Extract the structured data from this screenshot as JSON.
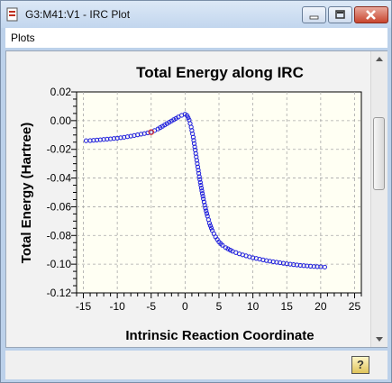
{
  "window": {
    "title": "G3:M41:V1 - IRC Plot"
  },
  "menu": {
    "items": [
      "Plots"
    ]
  },
  "statusbar": {
    "help_glyph": "?"
  },
  "chart_data": {
    "type": "scatter",
    "title": "Total Energy along IRC",
    "xlabel": "Intrinsic Reaction Coordinate",
    "ylabel": "Total Energy (Hartree)",
    "xlim": [
      -16,
      26
    ],
    "ylim": [
      -0.12,
      0.02
    ],
    "x_ticks": [
      -15,
      -10,
      -5,
      0,
      5,
      10,
      15,
      20,
      25
    ],
    "y_ticks": [
      0.02,
      0.0,
      -0.02,
      -0.04,
      -0.06,
      -0.08,
      -0.1,
      -0.12
    ],
    "x_tick_labels": [
      "-15",
      "-10",
      "-5",
      "0",
      "5",
      "10",
      "15",
      "20",
      "25"
    ],
    "y_tick_labels": [
      "0.02",
      "0.00",
      "-0.02",
      "-0.04",
      "-0.06",
      "-0.08",
      "-0.10",
      "-0.12"
    ],
    "grid": true,
    "marker_color": "#1a1adc",
    "highlight_color": "#d23030",
    "highlight_x": -5,
    "series": [
      {
        "x": [
          -14.6,
          -14.0,
          -13.0,
          -12.0,
          -11.0,
          -10.0,
          -9.0,
          -8.0,
          -7.0,
          -6.0,
          -5.0,
          -4.0,
          -3.0,
          -2.0,
          -1.0,
          -0.5,
          0.0,
          0.3,
          0.6,
          0.9,
          1.2,
          1.5,
          1.8,
          2.1,
          2.4,
          2.7,
          3.0,
          3.3,
          3.6,
          4.0,
          4.5,
          5.0,
          5.5,
          6.0,
          7.0,
          8.0,
          9.0,
          10.0,
          11.0,
          12.0,
          13.0,
          14.0,
          15.0,
          16.0,
          17.0,
          18.0,
          19.0,
          20.0,
          20.6
        ],
        "values": [
          -0.014,
          -0.0139,
          -0.0135,
          -0.0131,
          -0.0127,
          -0.0122,
          -0.0116,
          -0.0108,
          -0.0099,
          -0.009,
          -0.008,
          -0.0058,
          -0.003,
          -0.0002,
          0.0025,
          0.0037,
          0.0045,
          0.0035,
          0.0005,
          -0.0045,
          -0.0115,
          -0.0205,
          -0.03,
          -0.039,
          -0.047,
          -0.0545,
          -0.061,
          -0.0665,
          -0.0715,
          -0.0765,
          -0.081,
          -0.0845,
          -0.0868,
          -0.0885,
          -0.091,
          -0.0928,
          -0.0942,
          -0.0955,
          -0.0965,
          -0.0975,
          -0.0983,
          -0.099,
          -0.0997,
          -0.1003,
          -0.1008,
          -0.1012,
          -0.1016,
          -0.1018,
          -0.102
        ]
      }
    ]
  }
}
